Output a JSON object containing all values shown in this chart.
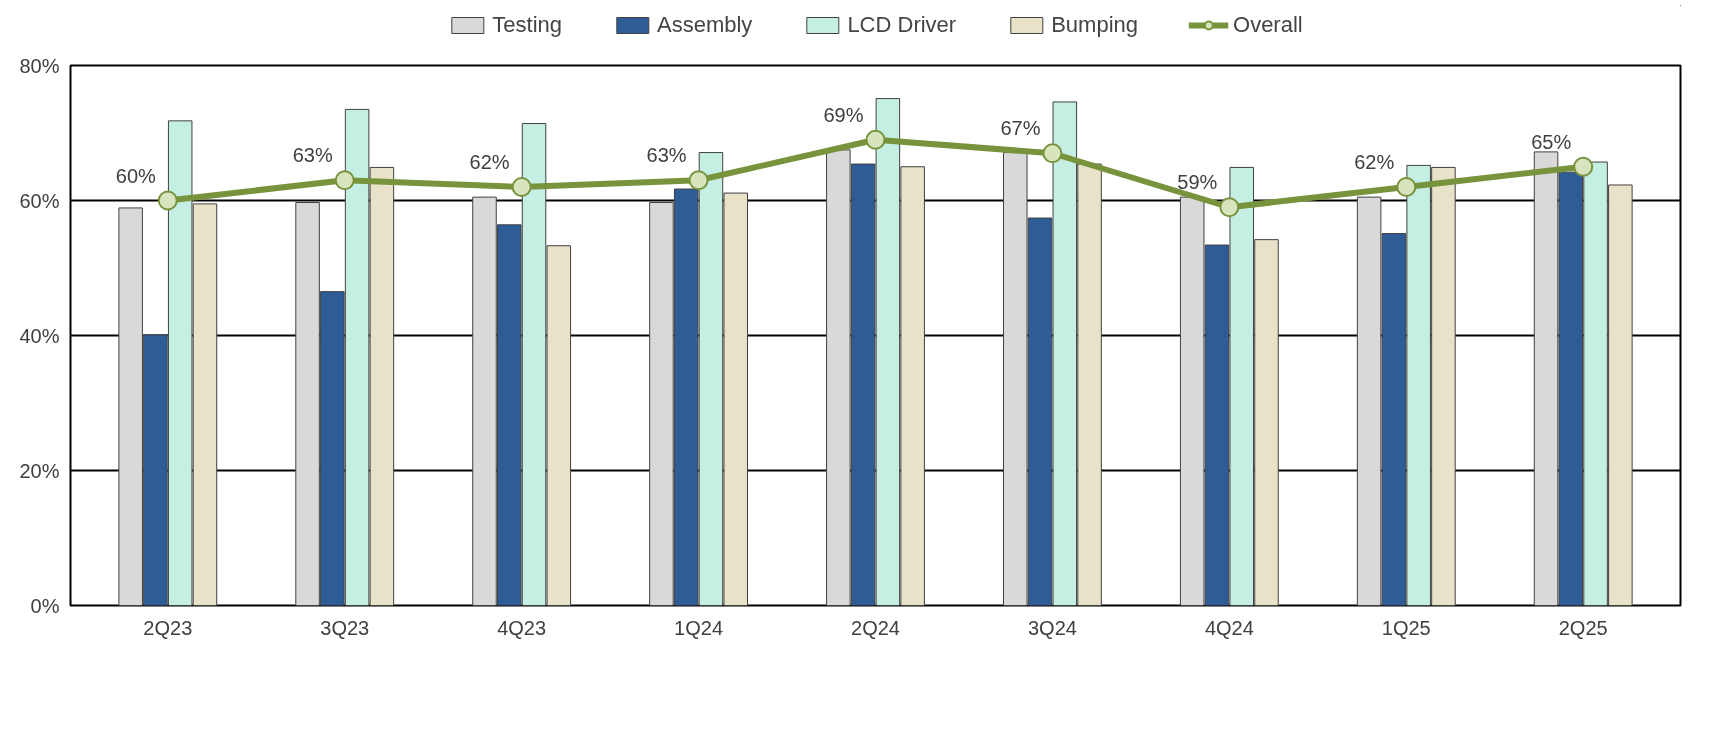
{
  "chart_data": {
    "type": "bar",
    "categories": [
      "2Q23",
      "3Q23",
      "4Q23",
      "1Q24",
      "2Q24",
      "3Q24",
      "4Q24",
      "1Q25",
      "2Q25"
    ],
    "ylim": [
      0,
      0.8
    ],
    "yticks": [
      {
        "value": 0,
        "label": "0%"
      },
      {
        "value": 0.2,
        "label": "20%"
      },
      {
        "value": 0.4,
        "label": "40%"
      },
      {
        "value": 0.6,
        "label": "60%"
      },
      {
        "value": 0.8,
        "label": "80%"
      }
    ],
    "grid": "y",
    "legend": "top",
    "marker": "circle",
    "series": [
      {
        "name": "Testing",
        "type": "bar",
        "color": "#d9d9d9",
        "values": [
          0.589,
          0.597,
          0.605,
          0.597,
          0.675,
          0.671,
          0.605,
          0.605,
          0.672
        ]
      },
      {
        "name": "Assembly",
        "type": "bar",
        "color": "#2e5c96",
        "values": [
          0.401,
          0.465,
          0.564,
          0.617,
          0.654,
          0.574,
          0.534,
          0.551,
          0.642
        ]
      },
      {
        "name": "LCD Driver",
        "type": "bar",
        "color": "#c6efe3",
        "values": [
          0.718,
          0.735,
          0.714,
          0.671,
          0.751,
          0.746,
          0.649,
          0.652,
          0.657
        ]
      },
      {
        "name": "Bumping",
        "type": "bar",
        "color": "#e8e2c8",
        "values": [
          0.595,
          0.649,
          0.533,
          0.611,
          0.65,
          0.654,
          0.542,
          0.649,
          0.623
        ]
      },
      {
        "name": "Overall",
        "type": "line",
        "color": "#77933c",
        "values": [
          0.6,
          0.63,
          0.62,
          0.63,
          0.69,
          0.67,
          0.59,
          0.62,
          0.65
        ],
        "value_labels": [
          "60%",
          "63%",
          "62%",
          "63%",
          "69%",
          "67%",
          "59%",
          "62%",
          "65%"
        ]
      }
    ]
  }
}
